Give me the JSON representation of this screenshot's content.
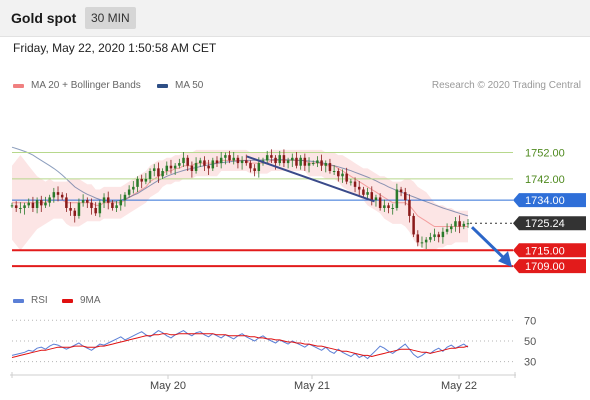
{
  "header": {
    "title": "Gold spot",
    "timeframe": "30 MIN"
  },
  "datetime": "Friday, May 22, 2020 1:50:58 AM CET",
  "legend": {
    "ma20": {
      "label": "MA 20 + Bollinger Bands",
      "color": "#f08080"
    },
    "ma50": {
      "label": "MA 50",
      "color": "#2e4f86"
    },
    "rsi": {
      "label": "RSI",
      "color": "#5b7fd6"
    },
    "ma9": {
      "label": "9MA",
      "color": "#e01010"
    }
  },
  "credit": "Research © 2020 Trading Central",
  "colors": {
    "up": "#2a7a2a",
    "down": "#8a1a1a",
    "resistance": "#b7d88c",
    "pivot": "#2f6fd8",
    "support": "#e21b1b",
    "current": "#333333",
    "trendline": "#3a4a8a",
    "arrow": "#2c66c8"
  },
  "chart_data": [
    {
      "type": "candlestick",
      "title": "Gold spot",
      "x_tick_labels": [
        "May 20",
        "May 21",
        "May 22"
      ],
      "ylim": [
        1703,
        1773
      ],
      "levels": [
        {
          "value": 1752.0,
          "label": "1752.00",
          "kind": "resistance"
        },
        {
          "value": 1742.0,
          "label": "1742.00",
          "kind": "resistance"
        },
        {
          "value": 1734.0,
          "label": "1734.00",
          "kind": "pivot"
        },
        {
          "value": 1725.24,
          "label": "1725.24",
          "kind": "current"
        },
        {
          "value": 1715.0,
          "label": "1715.00",
          "kind": "support"
        },
        {
          "value": 1709.0,
          "label": "1709.00",
          "kind": "support"
        }
      ],
      "close_path": [
        1732,
        1731,
        1731,
        1732,
        1733,
        1731,
        1734,
        1732,
        1733,
        1735,
        1737,
        1736,
        1735,
        1731,
        1730,
        1728,
        1733,
        1734,
        1733,
        1731,
        1729,
        1733,
        1735,
        1733,
        1731,
        1732,
        1734,
        1736,
        1738,
        1739,
        1742,
        1741,
        1742,
        1745,
        1746,
        1743,
        1745,
        1747,
        1746,
        1747,
        1748,
        1750,
        1747,
        1745,
        1748,
        1749,
        1747,
        1746,
        1749,
        1748,
        1750,
        1751,
        1749,
        1750,
        1748,
        1749,
        1748,
        1746,
        1745,
        1748,
        1749,
        1751,
        1750,
        1748,
        1751,
        1748,
        1749,
        1750,
        1747,
        1750,
        1747,
        1748,
        1748,
        1749,
        1747,
        1748,
        1745,
        1745,
        1743,
        1744,
        1741,
        1741,
        1739,
        1738,
        1736,
        1737,
        1734,
        1735,
        1731,
        1732,
        1731,
        1731,
        1738,
        1737,
        1734,
        1728,
        1721,
        1718,
        1718,
        1719,
        1720,
        1721,
        1720,
        1722,
        1723,
        1724,
        1726,
        1724,
        1725,
        1725.24
      ],
      "ma20_path": [
        1733,
        1733,
        1733,
        1733,
        1733,
        1733,
        1733,
        1733,
        1733,
        1734,
        1734,
        1734,
        1734,
        1733,
        1733,
        1733,
        1733,
        1733,
        1733,
        1733,
        1732,
        1732,
        1733,
        1733,
        1733,
        1733,
        1733,
        1734,
        1735,
        1736,
        1737,
        1738,
        1739,
        1741,
        1742,
        1743,
        1744,
        1745,
        1745,
        1746,
        1746,
        1747,
        1747,
        1747,
        1748,
        1748,
        1748,
        1748,
        1748,
        1748,
        1749,
        1749,
        1749,
        1749,
        1749,
        1749,
        1749,
        1748,
        1748,
        1748,
        1748,
        1748,
        1749,
        1749,
        1749,
        1749,
        1749,
        1749,
        1749,
        1749,
        1749,
        1748,
        1748,
        1748,
        1748,
        1747,
        1747,
        1747,
        1746,
        1745,
        1744,
        1743,
        1742,
        1741,
        1740,
        1739,
        1738,
        1737,
        1736,
        1735,
        1734,
        1733,
        1733,
        1733,
        1733,
        1732,
        1730,
        1728,
        1727,
        1726,
        1725,
        1724,
        1724,
        1724,
        1724,
        1724,
        1724,
        1724,
        1724,
        1724
      ],
      "ma50_path": [
        1754,
        1753.5,
        1753,
        1752.4,
        1751.8,
        1751,
        1750,
        1749,
        1748,
        1747,
        1746,
        1744.8,
        1743.5,
        1742,
        1740.5,
        1739,
        1738,
        1737,
        1736.2,
        1735.5,
        1734.8,
        1734.2,
        1733.8,
        1733.5,
        1733.5,
        1733.6,
        1734,
        1734.5,
        1735,
        1735.8,
        1736.5,
        1737.5,
        1738.5,
        1739.5,
        1740.5,
        1741.5,
        1742.2,
        1743,
        1743.6,
        1744.2,
        1744.7,
        1745.2,
        1745.6,
        1746,
        1746.3,
        1746.7,
        1747,
        1747.3,
        1747.6,
        1747.9,
        1748.1,
        1748.3,
        1748.5,
        1748.7,
        1748.8,
        1748.9,
        1749,
        1749,
        1749.1,
        1749.1,
        1749.2,
        1749.2,
        1749.2,
        1749.3,
        1749.3,
        1749.3,
        1749.2,
        1749.2,
        1749.1,
        1749,
        1748.9,
        1748.8,
        1748.6,
        1748.4,
        1748.1,
        1747.8,
        1747.4,
        1747,
        1746.6,
        1746.1,
        1745.6,
        1745.1,
        1744.5,
        1743.9,
        1743.3,
        1742.7,
        1742,
        1741.3,
        1740.5,
        1739.8,
        1739,
        1738.3,
        1737.6,
        1737,
        1736.4,
        1735.8,
        1735.2,
        1734.6,
        1734,
        1733.4,
        1732.8,
        1732.2,
        1731.6,
        1731,
        1730.5,
        1730,
        1729.5,
        1729,
        1728.5,
        1728
      ],
      "bollinger_band_width": [
        14,
        16,
        18,
        16,
        14,
        12,
        10,
        9,
        8,
        8,
        7,
        7,
        7,
        8,
        9,
        9,
        9,
        8,
        7,
        7,
        6,
        6,
        6,
        6,
        6,
        6,
        6,
        6,
        6,
        6,
        6,
        6,
        6,
        6,
        6,
        6,
        5,
        5,
        5,
        5,
        5,
        5,
        5,
        5,
        5,
        5,
        5,
        5,
        5,
        5,
        4,
        4,
        4,
        4,
        4,
        4,
        4,
        4,
        4,
        4,
        4,
        4,
        4,
        4,
        4,
        4,
        4,
        4,
        4,
        4,
        4,
        5,
        5,
        5,
        5,
        5,
        5,
        5,
        5,
        6,
        6,
        6,
        6,
        6,
        6,
        7,
        7,
        7,
        7,
        8,
        8,
        8,
        8,
        8,
        9,
        10,
        11,
        11,
        11,
        11,
        10,
        9,
        8,
        8,
        7,
        7,
        6,
        6,
        6,
        6
      ],
      "trendlines": [
        {
          "from": [
            0.515,
            1750.5
          ],
          "to": [
            0.795,
            1733.5
          ]
        }
      ]
    },
    {
      "type": "line",
      "title": "RSI",
      "ylim": [
        20,
        78
      ],
      "yticks": [
        70,
        50,
        30
      ],
      "series": [
        {
          "name": "RSI",
          "values": [
            36,
            37,
            38,
            39,
            41,
            40,
            43,
            44,
            42,
            45,
            47,
            46,
            44,
            42,
            44,
            46,
            48,
            45,
            43,
            41,
            44,
            47,
            46,
            48,
            50,
            52,
            54,
            51,
            53,
            55,
            57,
            59,
            56,
            54,
            57,
            60,
            58,
            55,
            53,
            56,
            58,
            60,
            57,
            55,
            58,
            59,
            56,
            54,
            57,
            55,
            53,
            56,
            54,
            52,
            55,
            57,
            54,
            52,
            50,
            53,
            55,
            52,
            50,
            48,
            51,
            49,
            47,
            50,
            48,
            46,
            44,
            47,
            45,
            43,
            41,
            44,
            40,
            38,
            42,
            39,
            37,
            35,
            38,
            34,
            36,
            33,
            37,
            41,
            45,
            43,
            40,
            38,
            41,
            44,
            47,
            42,
            37,
            34,
            36,
            39,
            38,
            41,
            43,
            40,
            44,
            46,
            43,
            45,
            47,
            44
          ]
        },
        {
          "name": "9MA",
          "values": [
            34,
            35,
            36,
            37,
            38,
            39,
            40,
            41,
            41,
            42,
            43,
            44,
            44,
            44,
            44,
            45,
            45,
            45,
            44,
            44,
            44,
            45,
            45,
            46,
            47,
            48,
            49,
            50,
            51,
            52,
            53,
            54,
            55,
            55,
            56,
            56,
            57,
            57,
            56,
            56,
            57,
            57,
            57,
            57,
            57,
            57,
            57,
            57,
            57,
            56,
            56,
            56,
            55,
            55,
            55,
            55,
            55,
            54,
            54,
            53,
            53,
            52,
            52,
            51,
            51,
            50,
            49,
            49,
            48,
            48,
            47,
            47,
            46,
            45,
            45,
            44,
            43,
            42,
            41,
            40,
            40,
            39,
            38,
            37,
            36,
            36,
            35,
            36,
            37,
            38,
            39,
            40,
            41,
            42,
            42,
            42,
            41,
            40,
            39,
            39,
            38,
            39,
            40,
            41,
            42,
            43,
            43,
            44,
            44,
            45
          ]
        }
      ]
    }
  ]
}
